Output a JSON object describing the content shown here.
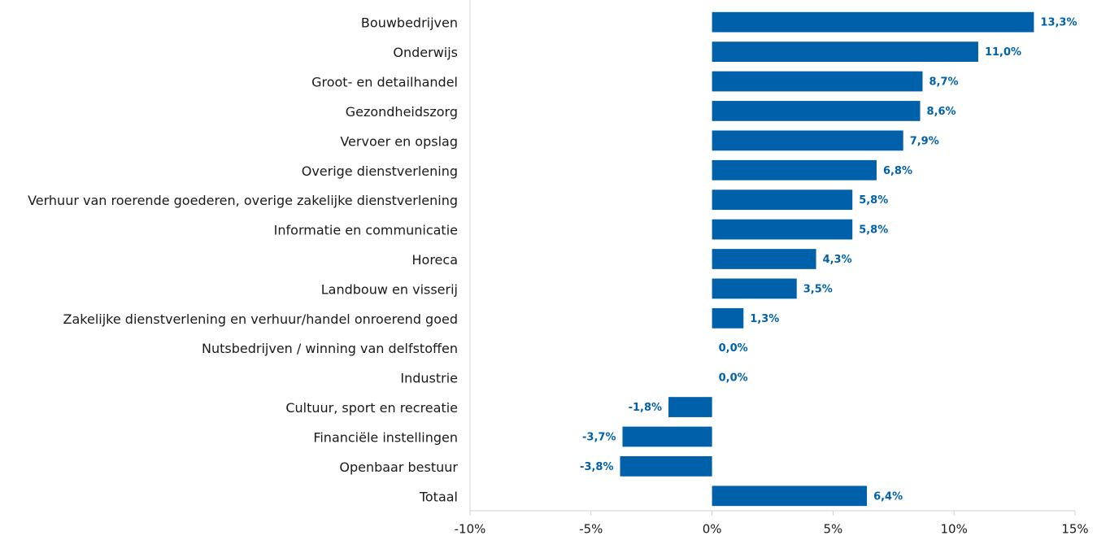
{
  "chart_data": {
    "type": "bar",
    "orientation": "horizontal",
    "categories": [
      "Bouwbedrijven",
      "Onderwijs",
      "Groot- en detailhandel",
      "Gezondheidszorg",
      "Vervoer en opslag",
      "Overige dienstverlening",
      "Verhuur van roerende goederen, overige zakelijke dienstverlening",
      "Informatie en communicatie",
      "Horeca",
      "Landbouw en visserij",
      "Zakelijke dienstverlening en verhuur/handel onroerend goed",
      "Nutsbedrijven / winning van delfstoffen",
      "Industrie",
      "Cultuur, sport en recreatie",
      "Financiële instellingen",
      "Openbaar bestuur",
      "Totaal"
    ],
    "values": [
      13.3,
      11.0,
      8.7,
      8.6,
      7.9,
      6.8,
      5.8,
      5.8,
      4.3,
      3.5,
      1.3,
      0.0,
      0.0,
      -1.8,
      -3.7,
      -3.8,
      6.4
    ],
    "value_labels": [
      "13,3%",
      "11,0%",
      "8,7%",
      "8,6%",
      "7,9%",
      "6,8%",
      "5,8%",
      "5,8%",
      "4,3%",
      "3,5%",
      "1,3%",
      "0,0%",
      "0,0%",
      "-1,8%",
      "-3,7%",
      "-3,8%",
      "6,4%"
    ],
    "color": "#0061aa",
    "xlim": [
      -10,
      15
    ],
    "xticks": [
      {
        "value": -10,
        "label": "-10%"
      },
      {
        "value": -5,
        "label": "-5%"
      },
      {
        "value": 0,
        "label": "0%"
      },
      {
        "value": 5,
        "label": "5%"
      },
      {
        "value": 10,
        "label": "10%"
      },
      {
        "value": 15,
        "label": "15%"
      }
    ],
    "grid": false
  }
}
